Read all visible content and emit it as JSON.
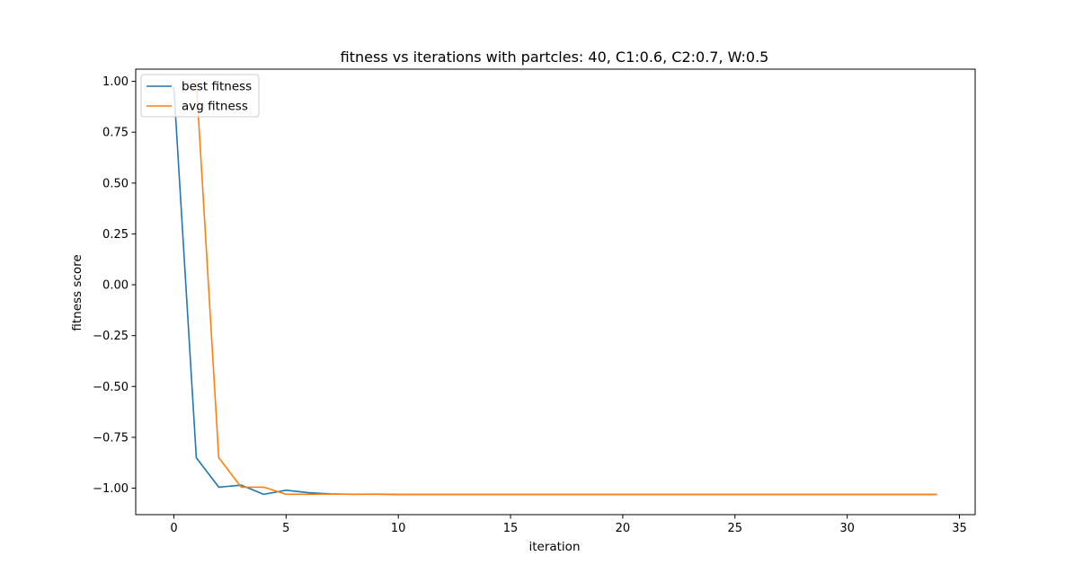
{
  "chart_data": {
    "type": "line",
    "title": "fitness vs iterations with partcles: 40, C1:0.6, C2:0.7, W:0.5",
    "xlabel": "iteration",
    "ylabel": "fitness score",
    "xlim": [
      -1.7,
      35.7
    ],
    "ylim": [
      -1.13,
      1.06
    ],
    "xticks": [
      0,
      5,
      10,
      15,
      20,
      25,
      30,
      35
    ],
    "yticks": [
      1.0,
      0.75,
      0.5,
      0.25,
      0.0,
      -0.25,
      -0.5,
      -0.75,
      -1.0
    ],
    "xtick_labels": [
      "0",
      "5",
      "10",
      "15",
      "20",
      "25",
      "30",
      "35"
    ],
    "ytick_labels": [
      "1.00",
      "0.75",
      "0.50",
      "0.25",
      "0.00",
      "−0.25",
      "−0.50",
      "−0.75",
      "−1.00"
    ],
    "grid": false,
    "legend_position": "top-left",
    "x": [
      0,
      1,
      2,
      3,
      4,
      5,
      6,
      7,
      8,
      9,
      10,
      11,
      12,
      13,
      14,
      15,
      16,
      17,
      18,
      19,
      20,
      21,
      22,
      23,
      24,
      25,
      26,
      27,
      28,
      29,
      30,
      31,
      32,
      33,
      34
    ],
    "series": [
      {
        "name": "best fitness",
        "color": "#1f77b4",
        "values": [
          0.97,
          -0.85,
          -0.995,
          -0.985,
          -1.03,
          -1.01,
          -1.022,
          -1.028,
          -1.03,
          -1.029,
          -1.031,
          -1.031,
          -1.031,
          -1.031,
          -1.031,
          -1.031,
          -1.031,
          -1.031,
          -1.031,
          -1.031,
          -1.031,
          -1.031,
          -1.031,
          -1.031,
          -1.031,
          -1.031,
          -1.031,
          -1.031,
          -1.031,
          -1.031,
          -1.031,
          -1.031,
          -1.031,
          -1.031,
          -1.031
        ]
      },
      {
        "name": "avg fitness",
        "color": "#ff7f0e",
        "values": [
          null,
          1.0,
          -0.85,
          -0.995,
          -0.995,
          -1.03,
          -1.03,
          -1.029,
          -1.03,
          -1.03,
          -1.031,
          -1.031,
          -1.031,
          -1.031,
          -1.031,
          -1.031,
          -1.031,
          -1.031,
          -1.031,
          -1.031,
          -1.031,
          -1.031,
          -1.031,
          -1.031,
          -1.031,
          -1.031,
          -1.031,
          -1.031,
          -1.031,
          -1.031,
          -1.031,
          -1.031,
          -1.031,
          -1.031,
          -1.031
        ]
      }
    ]
  }
}
